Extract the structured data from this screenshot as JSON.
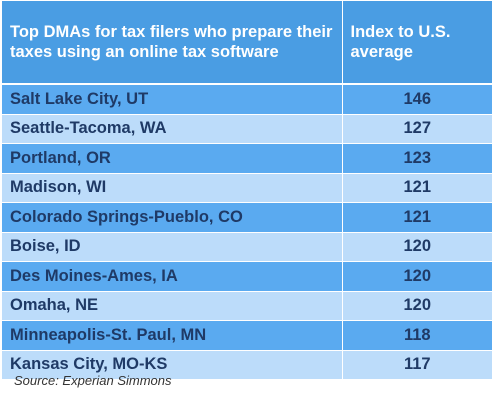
{
  "chart_data": {
    "type": "table",
    "columns": [
      "Top DMAs for tax filers who prepare their taxes using an online tax software",
      "Index to U.S. average"
    ],
    "rows": [
      {
        "dma": "Salt Lake City, UT",
        "index": 146
      },
      {
        "dma": "Seattle-Tacoma, WA",
        "index": 127
      },
      {
        "dma": "Portland, OR",
        "index": 123
      },
      {
        "dma": "Madison, WI",
        "index": 121
      },
      {
        "dma": "Colorado Springs-Pueblo, CO",
        "index": 121
      },
      {
        "dma": "Boise, ID",
        "index": 120
      },
      {
        "dma": "Des Moines-Ames, IA",
        "index": 120
      },
      {
        "dma": "Omaha, NE",
        "index": 120
      },
      {
        "dma": "Minneapolis-St. Paul, MN",
        "index": 118
      },
      {
        "dma": "Kansas City, MO-KS",
        "index": 117
      }
    ],
    "source": "Source: Experian Simmons"
  },
  "colors": {
    "header_bg": "#4a9de3",
    "row_dark": "#5aaaf0",
    "row_light": "#bcdcfa",
    "text": "#1f3a66"
  }
}
